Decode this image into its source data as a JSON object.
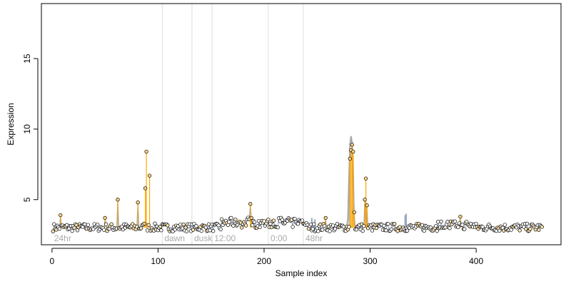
{
  "chart_data": {
    "type": "scatter",
    "title": "",
    "xlabel": "Sample index",
    "ylabel": "Expression",
    "xlim": [
      -10,
      480
    ],
    "ylim": [
      1.8,
      18.9
    ],
    "x_ticks": [
      0,
      100,
      200,
      300,
      400
    ],
    "y_ticks": [
      5,
      10,
      15
    ],
    "vlines": [
      {
        "x": 104,
        "label": "dawn"
      },
      {
        "x": 132,
        "label": "dusk"
      },
      {
        "x": 151,
        "label": "12:00"
      },
      {
        "x": 204,
        "label": "0:00"
      },
      {
        "x": 237,
        "label": "48hr"
      }
    ],
    "corner_label": {
      "x": 2,
      "text": "24hr"
    },
    "baseline": 3.0,
    "outlier_color": "#FFA500",
    "trace_color": "#9AA8C0",
    "peak_trace_color": "#A8A8A8",
    "series": [
      {
        "type": "points",
        "points": [
          {
            "x": 8,
            "y": 3.9
          },
          {
            "x": 50,
            "y": 3.7
          },
          {
            "x": 62,
            "y": 5.0
          },
          {
            "x": 81,
            "y": 4.8
          },
          {
            "x": 87,
            "y": 3.3
          },
          {
            "x": 88,
            "y": 5.8
          },
          {
            "x": 89,
            "y": 8.4
          },
          {
            "x": 92,
            "y": 6.7
          },
          {
            "x": 187,
            "y": 4.7
          },
          {
            "x": 188,
            "y": 3.7
          },
          {
            "x": 258,
            "y": 3.7
          },
          {
            "x": 281,
            "y": 7.9
          },
          {
            "x": 282,
            "y": 8.5
          },
          {
            "x": 283,
            "y": 8.9
          },
          {
            "x": 284,
            "y": 8.4
          },
          {
            "x": 285,
            "y": 4.1
          },
          {
            "x": 295,
            "y": 5.0
          },
          {
            "x": 296,
            "y": 6.5
          },
          {
            "x": 297,
            "y": 4.6
          },
          {
            "x": 385,
            "y": 3.8
          }
        ]
      }
    ]
  }
}
